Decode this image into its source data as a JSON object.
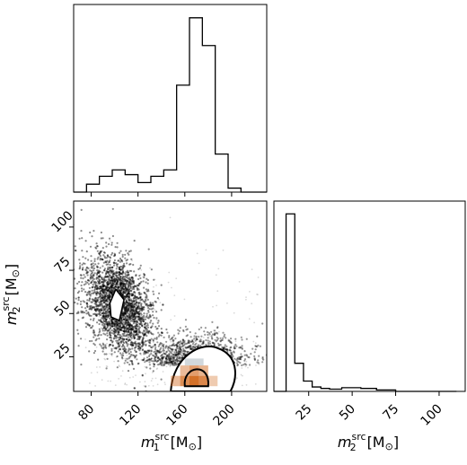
{
  "chart_data": [
    {
      "type": "histogram",
      "panel": "m1 marginal",
      "xlim": [
        65,
        230
      ],
      "bins": [
        {
          "x0": 65,
          "x1": 76,
          "v": 0
        },
        {
          "x0": 76,
          "x1": 87,
          "v": 1
        },
        {
          "x0": 87,
          "x1": 98,
          "v": 2
        },
        {
          "x0": 98,
          "x1": 109,
          "v": 2.8
        },
        {
          "x0": 109,
          "x1": 120,
          "v": 2.2
        },
        {
          "x0": 120,
          "x1": 131,
          "v": 1.2
        },
        {
          "x0": 131,
          "x1": 142,
          "v": 2
        },
        {
          "x0": 142,
          "x1": 153,
          "v": 2.8
        },
        {
          "x0": 153,
          "x1": 164,
          "v": 13.5
        },
        {
          "x0": 164,
          "x1": 175,
          "v": 22
        },
        {
          "x0": 175,
          "x1": 186,
          "v": 18.5
        },
        {
          "x0": 186,
          "x1": 197,
          "v": 4.8
        },
        {
          "x0": 197,
          "x1": 208,
          "v": 0.5
        },
        {
          "x0": 208,
          "x1": 230,
          "v": 0
        }
      ],
      "ymax": 23,
      "xticks": [
        80,
        120,
        160,
        200
      ]
    },
    {
      "type": "scatter",
      "panel": "joint m1-m2",
      "xlim": [
        65,
        230
      ],
      "ylim": [
        5,
        115
      ],
      "xticks": [
        80,
        120,
        160,
        200
      ],
      "yticks": [
        25,
        50,
        75,
        100
      ],
      "xlabel_base": "m",
      "xlabel_sub": "1",
      "xlabel_sup": "src",
      "xlabel_unit": "[M",
      "xlabel_unit_sub": "⊙",
      "xlabel_close": "]",
      "ylabel_base": "m",
      "ylabel_sub": "2",
      "ylabel_sup": "src",
      "ylabel_unit": "[M",
      "ylabel_unit_sub": "⊙",
      "ylabel_close": "]",
      "black_cloud_center": [
        103,
        55
      ],
      "white_region_center": [
        185,
        14
      ],
      "orange_region": {
        "x": [
          148,
          188
        ],
        "y": [
          8,
          22
        ],
        "color": "#d2691e"
      }
    },
    {
      "type": "histogram",
      "panel": "m2 marginal",
      "xlim": [
        5,
        115
      ],
      "bins": [
        {
          "x0": 5,
          "x1": 12,
          "v": 0
        },
        {
          "x0": 12,
          "x1": 17,
          "v": 24
        },
        {
          "x0": 17,
          "x1": 22,
          "v": 3.8
        },
        {
          "x0": 22,
          "x1": 27,
          "v": 1.4
        },
        {
          "x0": 27,
          "x1": 32,
          "v": 0.6
        },
        {
          "x0": 32,
          "x1": 37,
          "v": 0.4
        },
        {
          "x0": 37,
          "x1": 44,
          "v": 0.3
        },
        {
          "x0": 44,
          "x1": 55,
          "v": 0.5
        },
        {
          "x0": 55,
          "x1": 64,
          "v": 0.4
        },
        {
          "x0": 64,
          "x1": 75,
          "v": 0.2
        },
        {
          "x0": 75,
          "x1": 110,
          "v": 0
        }
      ],
      "ymax": 25,
      "xticks": [
        25,
        50,
        75,
        100
      ],
      "xlabel_base": "m",
      "xlabel_sub": "2",
      "xlabel_sup": "src",
      "xlabel_unit": "[M",
      "xlabel_unit_sub": "⊙",
      "xlabel_close": "]"
    }
  ]
}
